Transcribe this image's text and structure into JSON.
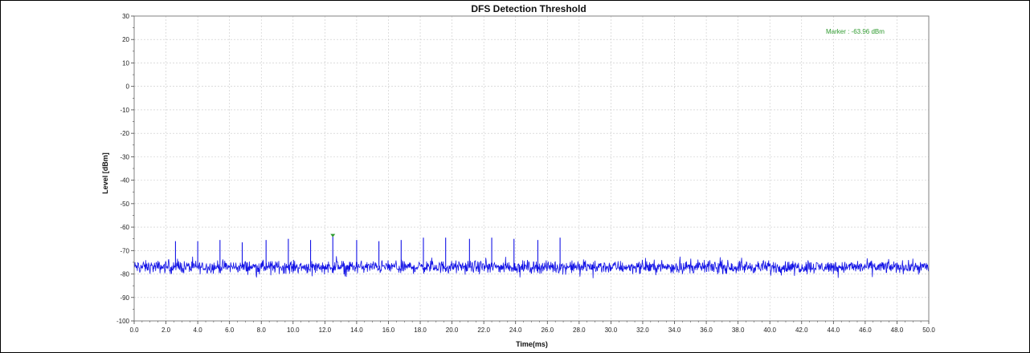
{
  "chart_data": {
    "type": "line",
    "title": "DFS Detection Threshold",
    "xlabel": "Time(ms)",
    "ylabel": "Level [dBm]",
    "xlim": [
      0.0,
      50.0
    ],
    "ylim": [
      -100,
      30
    ],
    "x_ticks": [
      "0.0",
      "2.0",
      "4.0",
      "6.0",
      "8.0",
      "10.0",
      "12.0",
      "14.0",
      "16.0",
      "18.0",
      "20.0",
      "22.0",
      "24.0",
      "26.0",
      "28.0",
      "30.0",
      "32.0",
      "34.0",
      "36.0",
      "38.0",
      "40.0",
      "42.0",
      "44.0",
      "46.0",
      "48.0",
      "50.0"
    ],
    "y_ticks": [
      "30",
      "20",
      "10",
      "0",
      "-10",
      "-20",
      "-30",
      "-40",
      "-50",
      "-60",
      "-70",
      "-80",
      "-90",
      "-100"
    ],
    "grid": true,
    "legend": false,
    "colors": {
      "trace": "#1414e6",
      "marker": "#2e9a2e",
      "grid": "#c8c8c8"
    },
    "series": [
      {
        "noise_floor_dbm": -77,
        "noise_band_dbm": [
          -80,
          -74
        ],
        "pulses": [
          {
            "x": 2.6,
            "y": -66.0
          },
          {
            "x": 4.0,
            "y": -66.0
          },
          {
            "x": 5.4,
            "y": -65.5
          },
          {
            "x": 6.8,
            "y": -66.5
          },
          {
            "x": 8.3,
            "y": -65.5
          },
          {
            "x": 9.7,
            "y": -65.0
          },
          {
            "x": 11.1,
            "y": -65.5
          },
          {
            "x": 12.5,
            "y": -64.0
          },
          {
            "x": 14.0,
            "y": -65.5
          },
          {
            "x": 15.4,
            "y": -66.0
          },
          {
            "x": 16.8,
            "y": -65.5
          },
          {
            "x": 18.2,
            "y": -64.5
          },
          {
            "x": 19.6,
            "y": -64.5
          },
          {
            "x": 21.1,
            "y": -65.0
          },
          {
            "x": 22.5,
            "y": -64.5
          },
          {
            "x": 23.9,
            "y": -65.0
          },
          {
            "x": 25.4,
            "y": -65.5
          },
          {
            "x": 26.8,
            "y": -64.5
          }
        ]
      }
    ],
    "marker": {
      "x": 12.5,
      "y": -63.96,
      "label": "Marker : -63.96 dBm"
    }
  }
}
